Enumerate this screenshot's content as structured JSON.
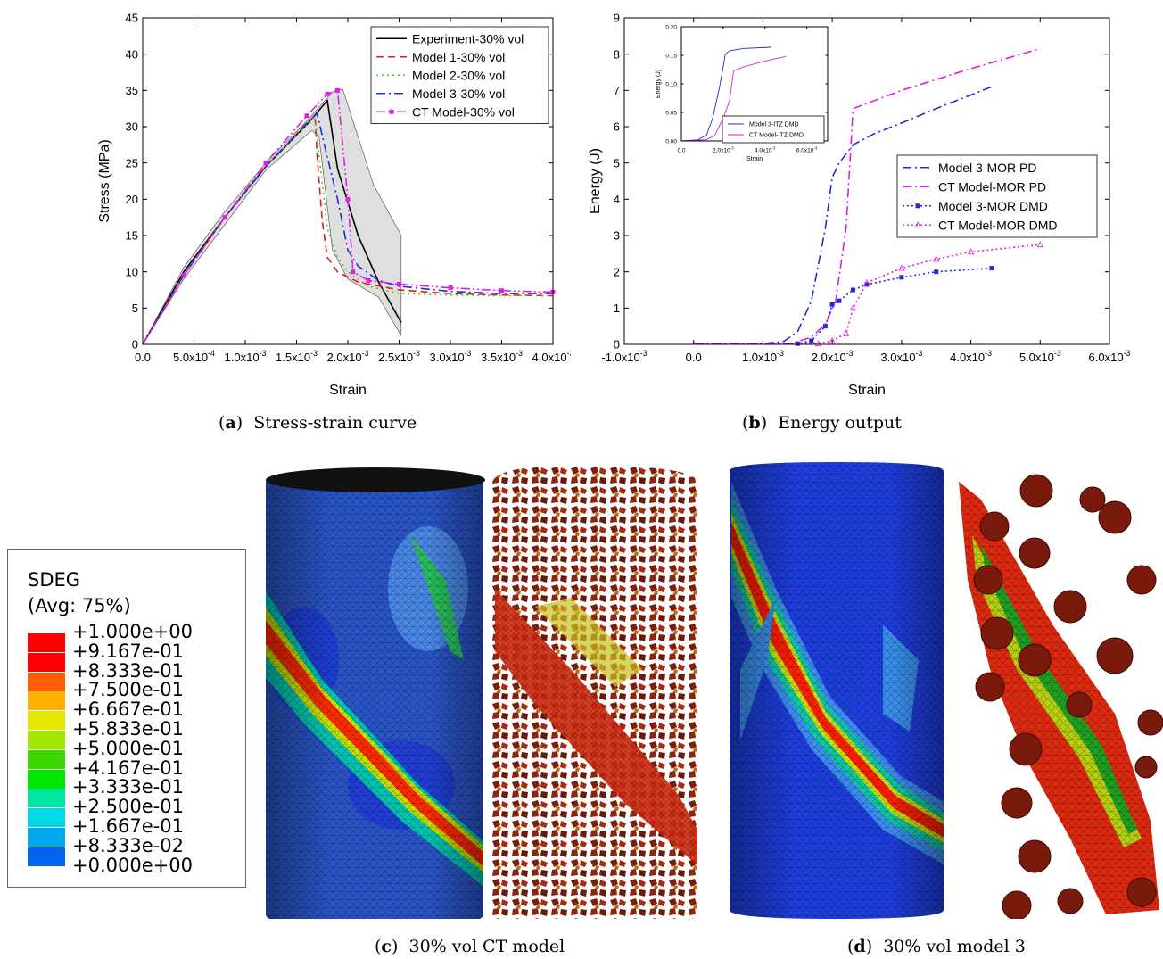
{
  "panels": {
    "a": {
      "letter": "a",
      "caption": "Stress-strain curve"
    },
    "b": {
      "letter": "b",
      "caption": "Energy output"
    },
    "c": {
      "letter": "c",
      "caption": "30% vol CT model"
    },
    "d": {
      "letter": "d",
      "caption": "30% vol model 3"
    }
  },
  "chart_data": [
    {
      "type": "line",
      "xlabel": "Strain",
      "ylabel": "Stress (MPa)",
      "xlim": [
        0,
        0.004
      ],
      "ylim": [
        0,
        45
      ],
      "x_ticks": [
        {
          "v": 0,
          "m": "0.0",
          "e": ""
        },
        {
          "v": 0.0005,
          "m": "5.0x10",
          "e": "-4"
        },
        {
          "v": 0.001,
          "m": "1.0x10",
          "e": "-3"
        },
        {
          "v": 0.0015,
          "m": "1.5x10",
          "e": "-3"
        },
        {
          "v": 0.002,
          "m": "2.0x10",
          "e": "-3"
        },
        {
          "v": 0.0025,
          "m": "2.5x10",
          "e": "-3"
        },
        {
          "v": 0.003,
          "m": "3.0x10",
          "e": "-3"
        },
        {
          "v": 0.0035,
          "m": "3.5x10",
          "e": "-3"
        },
        {
          "v": 0.004,
          "m": "4.0x10",
          "e": "-3"
        }
      ],
      "y_ticks": [
        0,
        5,
        10,
        15,
        20,
        25,
        30,
        35,
        40,
        45
      ],
      "legend": "top-right",
      "band": {
        "upper": [
          [
            0,
            0
          ],
          [
            0.0004,
            10.6
          ],
          [
            0.0008,
            18.3
          ],
          [
            0.0012,
            25
          ],
          [
            0.0016,
            30.8
          ],
          [
            0.00185,
            34.8
          ],
          [
            0.00195,
            35.2
          ],
          [
            0.00225,
            22
          ],
          [
            0.00252,
            15
          ]
        ],
        "lower": [
          [
            0.00252,
            1.2
          ],
          [
            0.0023,
            6.5
          ],
          [
            0.002,
            9
          ],
          [
            0.00185,
            13
          ],
          [
            0.00172,
            28.5
          ],
          [
            0.00165,
            29.5
          ],
          [
            0.0012,
            24
          ],
          [
            0.0008,
            16.5
          ],
          [
            0.0004,
            9
          ],
          [
            0,
            0
          ]
        ]
      },
      "series": [
        {
          "name": "Experiment-30% vol",
          "color": "#000000",
          "dash": "",
          "marker": "",
          "points": [
            [
              0,
              0
            ],
            [
              0.0004,
              10
            ],
            [
              0.0008,
              17.5
            ],
            [
              0.0012,
              24.5
            ],
            [
              0.0016,
              30.3
            ],
            [
              0.0018,
              33.6
            ],
            [
              0.0019,
              24.2
            ],
            [
              0.0021,
              15
            ],
            [
              0.0023,
              8.6
            ],
            [
              0.00252,
              3
            ]
          ]
        },
        {
          "name": "Model 1-30% vol",
          "color": "#e41a1c",
          "dash": "8,5",
          "marker": "",
          "points": [
            [
              0,
              0
            ],
            [
              0.0004,
              9.5
            ],
            [
              0.0008,
              17.5
            ],
            [
              0.0012,
              24.5
            ],
            [
              0.0016,
              30.5
            ],
            [
              0.00168,
              31.5
            ],
            [
              0.0017,
              26
            ],
            [
              0.00175,
              17
            ],
            [
              0.0018,
              12
            ],
            [
              0.0019,
              10
            ],
            [
              0.0021,
              8.6
            ],
            [
              0.0025,
              7.5
            ],
            [
              0.003,
              7
            ],
            [
              0.0035,
              6.8
            ],
            [
              0.004,
              6.7
            ]
          ]
        },
        {
          "name": "Model 2-30% vol",
          "color": "#3ecc1e",
          "dash": "2,4",
          "marker": "",
          "points": [
            [
              0,
              0
            ],
            [
              0.0004,
              9.5
            ],
            [
              0.0008,
              17.5
            ],
            [
              0.0012,
              24.5
            ],
            [
              0.0016,
              30.3
            ],
            [
              0.00168,
              31
            ],
            [
              0.0018,
              16
            ],
            [
              0.0019,
              12
            ],
            [
              0.002,
              10
            ],
            [
              0.0022,
              8
            ],
            [
              0.0025,
              7
            ],
            [
              0.003,
              6.8
            ],
            [
              0.0035,
              6.7
            ],
            [
              0.004,
              6.7
            ]
          ]
        },
        {
          "name": "Model 3-30% vol",
          "color": "#1f2bd8",
          "dash": "10,4,2,4",
          "marker": "",
          "points": [
            [
              0,
              0
            ],
            [
              0.0004,
              9.5
            ],
            [
              0.0008,
              17.5
            ],
            [
              0.0012,
              24.5
            ],
            [
              0.0016,
              30.5
            ],
            [
              0.0017,
              31.8
            ],
            [
              0.00178,
              27
            ],
            [
              0.0019,
              20
            ],
            [
              0.002,
              13
            ],
            [
              0.0021,
              10.8
            ],
            [
              0.0023,
              8.8
            ],
            [
              0.0025,
              8
            ],
            [
              0.003,
              7.3
            ],
            [
              0.0035,
              7
            ],
            [
              0.004,
              7
            ]
          ]
        },
        {
          "name": "CT Model-30% vol",
          "color": "#e11de1",
          "dash": "10,3,2,3,2,3",
          "marker": "square",
          "points": [
            [
              0,
              0
            ],
            [
              0.0004,
              9.5
            ],
            [
              0.0008,
              17.5
            ],
            [
              0.0012,
              25
            ],
            [
              0.0016,
              31.5
            ],
            [
              0.0018,
              34.5
            ],
            [
              0.0019,
              35
            ],
            [
              0.002,
              20
            ],
            [
              0.00205,
              10
            ],
            [
              0.0022,
              8.8
            ],
            [
              0.0025,
              8.3
            ],
            [
              0.003,
              7.8
            ],
            [
              0.0035,
              7.4
            ],
            [
              0.004,
              7.2
            ]
          ]
        }
      ]
    },
    {
      "type": "line",
      "xlabel": "Strain",
      "ylabel": "Energy (J)",
      "xlim": [
        -0.001,
        0.006
      ],
      "ylim": [
        0,
        9
      ],
      "x_ticks": [
        {
          "v": -0.001,
          "m": "-1.0x10",
          "e": "-3"
        },
        {
          "v": 0,
          "m": "0.0",
          "e": ""
        },
        {
          "v": 0.001,
          "m": "1.0x10",
          "e": "-3"
        },
        {
          "v": 0.002,
          "m": "2.0x10",
          "e": "-3"
        },
        {
          "v": 0.003,
          "m": "3.0x10",
          "e": "-3"
        },
        {
          "v": 0.004,
          "m": "4.0x10",
          "e": "-3"
        },
        {
          "v": 0.005,
          "m": "5.0x10",
          "e": "-3"
        },
        {
          "v": 0.006,
          "m": "6.0x10",
          "e": "-3"
        }
      ],
      "y_ticks": [
        0,
        1,
        2,
        3,
        4,
        5,
        6,
        7,
        8,
        9
      ],
      "legend": "center-right",
      "series": [
        {
          "name": "Model 3-MOR PD",
          "color": "#1f2bd8",
          "dash": "10,4,2,4",
          "marker": "",
          "points": [
            [
              0,
              0.02
            ],
            [
              0.001,
              0.02
            ],
            [
              0.0013,
              0.08
            ],
            [
              0.0015,
              0.35
            ],
            [
              0.0017,
              1.2
            ],
            [
              0.0019,
              3.2
            ],
            [
              0.002,
              4.6
            ],
            [
              0.0021,
              5
            ],
            [
              0.0023,
              5.5
            ],
            [
              0.0026,
              5.8
            ],
            [
              0.003,
              6.1
            ],
            [
              0.0035,
              6.5
            ],
            [
              0.0043,
              7.1
            ]
          ]
        },
        {
          "name": "CT Model-MOR PD",
          "color": "#e11de1",
          "dash": "10,4,2,4",
          "marker": "",
          "points": [
            [
              0,
              0.02
            ],
            [
              0.0014,
              0.02
            ],
            [
              0.0017,
              0.2
            ],
            [
              0.0019,
              0.55
            ],
            [
              0.00205,
              1.2
            ],
            [
              0.0022,
              3.2
            ],
            [
              0.0023,
              6.5
            ],
            [
              0.003,
              7
            ],
            [
              0.004,
              7.6
            ],
            [
              0.005,
              8.15
            ]
          ]
        },
        {
          "name": "Model 3-MOR DMD",
          "color": "#1f2bd8",
          "dash": "2,3",
          "marker": "square",
          "points": [
            [
              0,
              0.02
            ],
            [
              0.0015,
              0.02
            ],
            [
              0.0017,
              0.1
            ],
            [
              0.0019,
              0.5
            ],
            [
              0.002,
              1.1
            ],
            [
              0.0021,
              1.2
            ],
            [
              0.0023,
              1.5
            ],
            [
              0.0025,
              1.65
            ],
            [
              0.003,
              1.85
            ],
            [
              0.0035,
              2
            ],
            [
              0.0043,
              2.1
            ]
          ]
        },
        {
          "name": "CT Model-MOR DMD",
          "color": "#e11de1",
          "dash": "2,3",
          "marker": "triangle",
          "points": [
            [
              0,
              0.02
            ],
            [
              0.0018,
              0.02
            ],
            [
              0.002,
              0.1
            ],
            [
              0.0022,
              0.3
            ],
            [
              0.0023,
              1
            ],
            [
              0.0025,
              1.7
            ],
            [
              0.003,
              2.1
            ],
            [
              0.0035,
              2.35
            ],
            [
              0.004,
              2.55
            ],
            [
              0.005,
              2.75
            ]
          ]
        }
      ]
    },
    {
      "type": "line",
      "inset": true,
      "xlabel": "Strain",
      "ylabel": "Energy (J)",
      "xlim": [
        0,
        0.007
      ],
      "ylim": [
        0,
        0.2
      ],
      "x_ticks": [
        {
          "v": 0,
          "m": "0.0",
          "e": ""
        },
        {
          "v": 0.002,
          "m": "2.0x10",
          "e": "-3"
        },
        {
          "v": 0.004,
          "m": "4.0x10",
          "e": "-3"
        },
        {
          "v": 0.006,
          "m": "6.0x10",
          "e": "-3"
        }
      ],
      "y_ticks": [
        "0.00",
        "0.05",
        "0.10",
        "0.15",
        "0.20"
      ],
      "y_tick_values": [
        0,
        0.05,
        0.1,
        0.15,
        0.2
      ],
      "legend": "bottom-right",
      "series": [
        {
          "name": "Model 3-ITZ DMD",
          "color": "#1f2bd8",
          "dash": "",
          "marker": "",
          "points": [
            [
              0,
              0
            ],
            [
              0.0008,
              0.002
            ],
            [
              0.0012,
              0.01
            ],
            [
              0.0015,
              0.04
            ],
            [
              0.0018,
              0.09
            ],
            [
              0.002,
              0.13
            ],
            [
              0.0021,
              0.152
            ],
            [
              0.0023,
              0.158
            ],
            [
              0.003,
              0.162
            ],
            [
              0.0043,
              0.164
            ]
          ]
        },
        {
          "name": "CT Model-ITZ DMD",
          "color": "#e11de1",
          "dash": "",
          "marker": "",
          "points": [
            [
              0,
              0
            ],
            [
              0.0012,
              0.002
            ],
            [
              0.0016,
              0.01
            ],
            [
              0.002,
              0.04
            ],
            [
              0.0023,
              0.07
            ],
            [
              0.0025,
              0.123
            ],
            [
              0.003,
              0.13
            ],
            [
              0.004,
              0.14
            ],
            [
              0.005,
              0.148
            ]
          ]
        }
      ]
    }
  ],
  "sdeg_legend": {
    "title": "SDEG",
    "subtitle": "(Avg: 75%)",
    "levels": [
      {
        "label": "+1.000e+00",
        "color": "#ff0000"
      },
      {
        "label": "+9.167e-01",
        "color": "#ff0000"
      },
      {
        "label": "+8.333e-01",
        "color": "#ff5e00"
      },
      {
        "label": "+7.500e-01",
        "color": "#ffb000"
      },
      {
        "label": "+6.667e-01",
        "color": "#e6e600"
      },
      {
        "label": "+5.833e-01",
        "color": "#a0e600"
      },
      {
        "label": "+5.000e-01",
        "color": "#3cd600"
      },
      {
        "label": "+4.167e-01",
        "color": "#00e600"
      },
      {
        "label": "+3.333e-01",
        "color": "#00e6a0"
      },
      {
        "label": "+2.500e-01",
        "color": "#00d8e6"
      },
      {
        "label": "+1.667e-01",
        "color": "#00a8f0"
      },
      {
        "label": "+8.333e-02",
        "color": "#0064f0"
      },
      {
        "label": "+0.000e+00",
        "color": "#1414ff"
      }
    ]
  }
}
